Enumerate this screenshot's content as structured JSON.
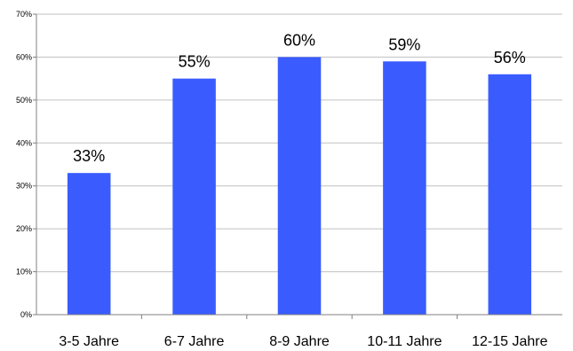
{
  "chart_data": {
    "type": "bar",
    "categories": [
      "3-5 Jahre",
      "6-7 Jahre",
      "8-9 Jahre",
      "10-11 Jahre",
      "12-15 Jahre"
    ],
    "values": [
      33,
      55,
      60,
      59,
      56
    ],
    "data_labels": [
      "33%",
      "55%",
      "60%",
      "59%",
      "56%"
    ],
    "ylim": [
      0,
      70
    ],
    "yticks": [
      0,
      10,
      20,
      30,
      40,
      50,
      60,
      70
    ],
    "ytick_labels": [
      "0%",
      "10%",
      "20%",
      "30%",
      "40%",
      "50%",
      "60%",
      "70%"
    ],
    "grid": true,
    "legend": "none",
    "bar_color": "#3a5cff"
  }
}
